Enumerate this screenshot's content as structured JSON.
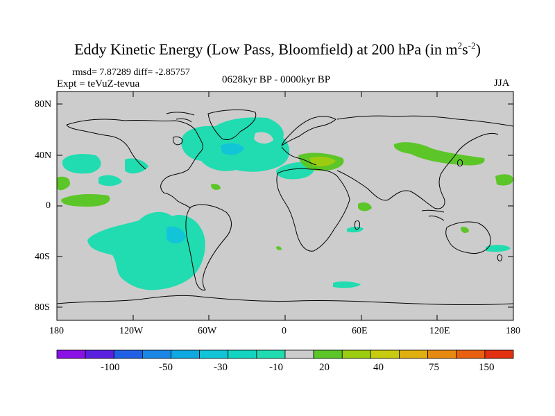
{
  "title": {
    "main": "Eddy Kinetic Energy (Low Pass, Bloomfield) at 200 hPa (in m",
    "sup1": "2",
    "mid": "s",
    "sup2": "-2",
    "end": ")"
  },
  "stats": "rmsd= 7.87289 diff= -2.85757",
  "experiment": "Expt = teVuZ-tevua",
  "period": "0628kyr BP - 0000kyr BP",
  "season": "JJA",
  "lat_labels": [
    "80N",
    "40N",
    "0",
    "40S",
    "80S"
  ],
  "lon_labels": [
    "180",
    "120W",
    "60W",
    "0",
    "60E",
    "120E",
    "180"
  ],
  "colorbar": {
    "labels": [
      "-100",
      "-50",
      "-30",
      "-10",
      "20",
      "40",
      "75",
      "150"
    ],
    "colors": [
      "#8a10e6",
      "#5a20e0",
      "#2060e6",
      "#1a86e6",
      "#10a8e0",
      "#12c4d8",
      "#12d4c0",
      "#20dcb0",
      "#cccccc",
      "#5cc628",
      "#9ccc10",
      "#c8cc10",
      "#e0b010",
      "#e88a10",
      "#e86010",
      "#e23010"
    ]
  },
  "colors": {
    "land_sea_background": "#cccccc",
    "cyan_anomaly": "#20dcb0",
    "green_anomaly": "#5cc628",
    "yellowgreen_anomaly": "#9ccc10",
    "blue_anomaly": "#12c4d8"
  }
}
